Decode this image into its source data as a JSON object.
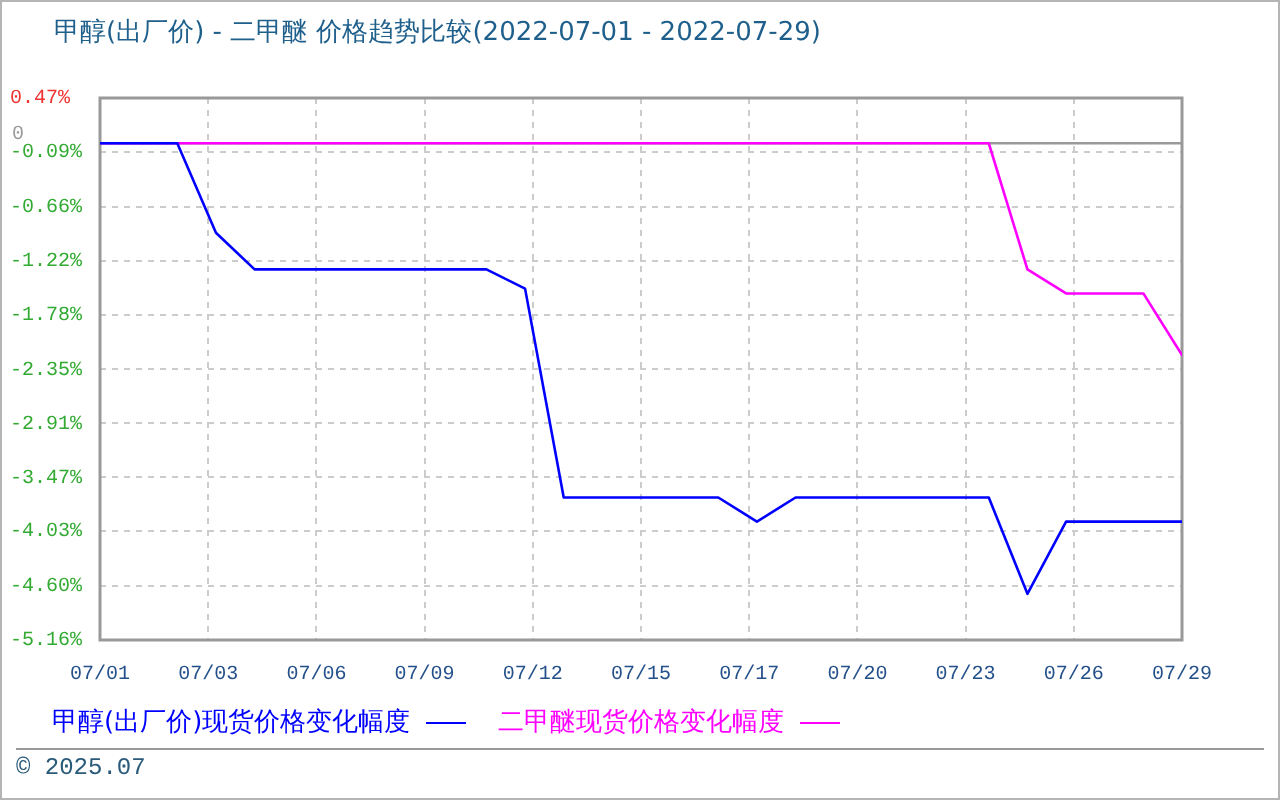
{
  "chart_data": {
    "type": "line",
    "title": "甲醇(出厂价) - 二甲醚 价格趋势比较(2022-07-01 - 2022-07-29)",
    "x": [
      "2022-07-01",
      "2022-07-02",
      "2022-07-03",
      "2022-07-04",
      "2022-07-05",
      "2022-07-06",
      "2022-07-07",
      "2022-07-08",
      "2022-07-09",
      "2022-07-10",
      "2022-07-11",
      "2022-07-12",
      "2022-07-13",
      "2022-07-14",
      "2022-07-15",
      "2022-07-16",
      "2022-07-17",
      "2022-07-18",
      "2022-07-19",
      "2022-07-20",
      "2022-07-21",
      "2022-07-22",
      "2022-07-23",
      "2022-07-24",
      "2022-07-25",
      "2022-07-26",
      "2022-07-27",
      "2022-07-28",
      "2022-07-29"
    ],
    "series": [
      {
        "name": "甲醇(出厂价)现货价格变化幅度",
        "color": "#0000ff",
        "values": [
          0,
          0,
          0,
          -0.93,
          -1.31,
          -1.31,
          -1.31,
          -1.31,
          -1.31,
          -1.31,
          -1.31,
          -1.51,
          -3.68,
          -3.68,
          -3.68,
          -3.68,
          -3.68,
          -3.93,
          -3.68,
          -3.68,
          -3.68,
          -3.68,
          -3.68,
          -3.68,
          -4.68,
          -3.93,
          -3.93,
          -3.93,
          -3.93
        ]
      },
      {
        "name": "二甲醚现货价格变化幅度",
        "color": "#ff00ff",
        "values": [
          0,
          0,
          0,
          0,
          0,
          0,
          0,
          0,
          0,
          0,
          0,
          0,
          0,
          0,
          0,
          0,
          0,
          0,
          0,
          0,
          0,
          0,
          0,
          0,
          -1.31,
          -1.56,
          -1.56,
          -1.56,
          -2.2
        ]
      }
    ],
    "xlim": [
      "2022-07-01",
      "2022-07-29"
    ],
    "xticks": [
      {
        "value": "2022-07-01",
        "label": "07/01"
      },
      {
        "value": "2022-07-03T19:12",
        "label": "07/03"
      },
      {
        "value": "2022-07-06T14:24",
        "label": "07/06"
      },
      {
        "value": "2022-07-09T09:36",
        "label": "07/09"
      },
      {
        "value": "2022-07-12T04:48",
        "label": "07/12"
      },
      {
        "value": "2022-07-15",
        "label": "07/15"
      },
      {
        "value": "2022-07-17T19:12",
        "label": "07/17"
      },
      {
        "value": "2022-07-20T14:24",
        "label": "07/20"
      },
      {
        "value": "2022-07-23T09:36",
        "label": "07/23"
      },
      {
        "value": "2022-07-26T04:48",
        "label": "07/26"
      },
      {
        "value": "2022-07-29",
        "label": "07/29"
      }
    ],
    "ylim": [
      -5.16,
      0.47
    ],
    "yticks": [
      {
        "value": 0.47,
        "label": "0.47%"
      },
      {
        "value": -0.09,
        "label": "-0.09%"
      },
      {
        "value": -0.66,
        "label": "-0.66%"
      },
      {
        "value": -1.22,
        "label": "-1.22%"
      },
      {
        "value": -1.78,
        "label": "-1.78%"
      },
      {
        "value": -2.35,
        "label": "-2.35%"
      },
      {
        "value": -2.91,
        "label": "-2.91%"
      },
      {
        "value": -3.47,
        "label": "-3.47%"
      },
      {
        "value": -4.03,
        "label": "-4.03%"
      },
      {
        "value": -4.6,
        "label": "-4.60%"
      },
      {
        "value": -5.16,
        "label": "-5.16%"
      }
    ],
    "ref_lines": [
      {
        "axis": "y",
        "value": 0,
        "label": "0",
        "color": "#999999"
      }
    ],
    "grid": true,
    "legend": "bottom",
    "marker": "none",
    "line_style": "solid",
    "annotations": [
      "© 2025.07"
    ]
  }
}
